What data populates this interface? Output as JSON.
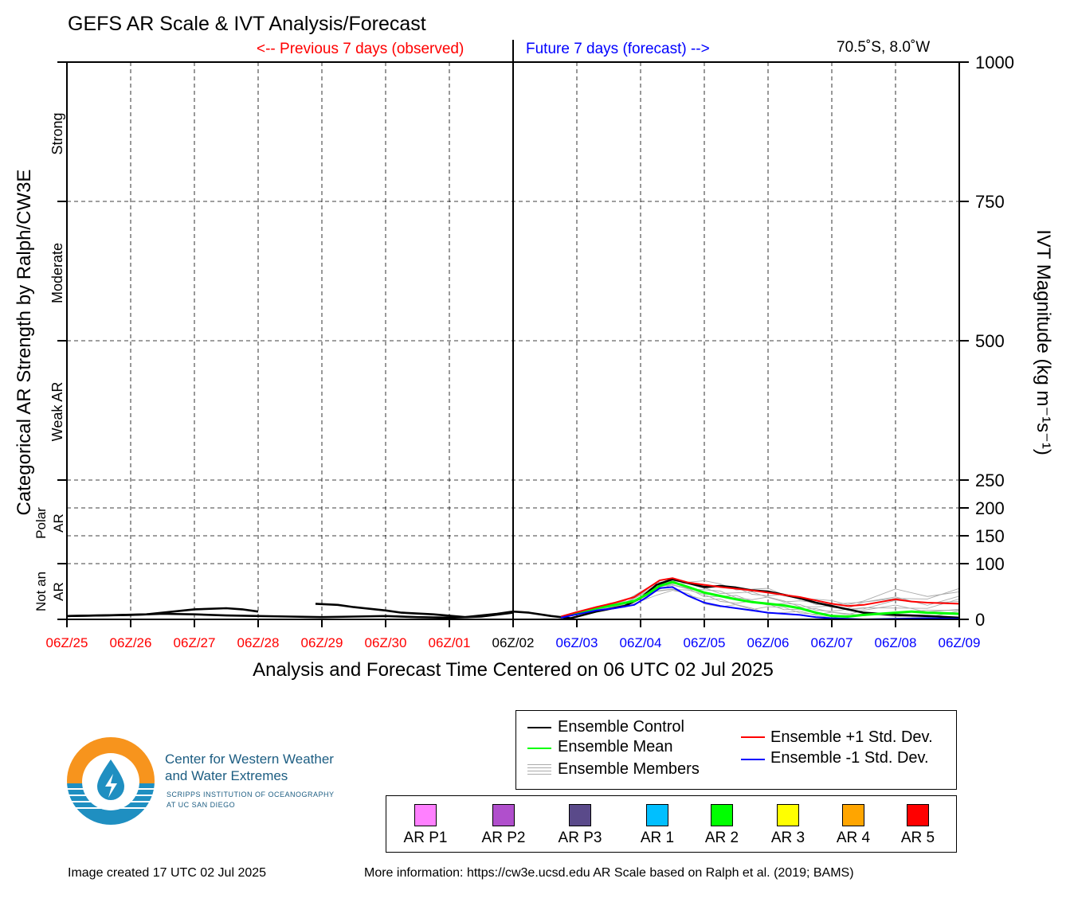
{
  "header": {
    "title": "GEFS AR Scale & IVT Analysis/Forecast",
    "previous_label": "<-- Previous 7 days (observed)",
    "future_label": "Future 7 days (forecast) -->",
    "location": "70.5˚S, 8.0˚W"
  },
  "footer": {
    "created": "Image created 17 UTC 02 Jul 2025",
    "more_info": "More information: https://cw3e.ucsd.edu AR Scale based on Ralph et al. (2019; BAMS)"
  },
  "logo": {
    "line1": "Center for Western Weather",
    "line2": "and Water Extremes",
    "line3": "SCRIPPS INSTITUTION OF OCEANOGRAPHY",
    "line4": "AT UC SAN DIEGO",
    "colors": {
      "orange": "#f7941d",
      "blue": "#1f8fc1",
      "dark": "#1c5d82"
    }
  },
  "legend_lines": [
    {
      "label": "Ensemble Control",
      "color": "#000000"
    },
    {
      "label": "Ensemble Mean",
      "color": "#00ff00"
    },
    {
      "label": "Ensemble Members",
      "color": "#aaaaaa"
    },
    {
      "label": "Ensemble +1 Std. Dev.",
      "color": "#ff0000"
    },
    {
      "label": "Ensemble -1 Std. Dev.",
      "color": "#0000ff"
    }
  ],
  "legend_categories": [
    {
      "label": "AR P1",
      "color": "#ff80ff"
    },
    {
      "label": "AR P2",
      "color": "#b04fcc"
    },
    {
      "label": "AR P3",
      "color": "#5a4a8a"
    },
    {
      "label": "AR 1",
      "color": "#00bfff"
    },
    {
      "label": "AR 2",
      "color": "#00ff00"
    },
    {
      "label": "AR 3",
      "color": "#ffff00"
    },
    {
      "label": "AR 4",
      "color": "#ffa500"
    },
    {
      "label": "AR 5",
      "color": "#ff0000"
    }
  ],
  "chart_data": {
    "type": "line",
    "title": "GEFS AR Scale & IVT Analysis/Forecast",
    "xlabel": "Analysis and Forecast Time Centered on 06 UTC 02 Jul 2025",
    "ylabel_left": "Categorical AR Strength by Ralph/CW3E",
    "ylabel_right": "IVT Magnitude (kg m⁻¹s⁻¹)",
    "x_unit": "days relative to 06Z/02",
    "xlim": [
      -7,
      7
    ],
    "x_ticks": [
      {
        "label": "06Z/25",
        "color": "#ff0000"
      },
      {
        "label": "06Z/26",
        "color": "#ff0000"
      },
      {
        "label": "06Z/27",
        "color": "#ff0000"
      },
      {
        "label": "06Z/28",
        "color": "#ff0000"
      },
      {
        "label": "06Z/29",
        "color": "#ff0000"
      },
      {
        "label": "06Z/30",
        "color": "#ff0000"
      },
      {
        "label": "06Z/01",
        "color": "#ff0000"
      },
      {
        "label": "06Z/02",
        "color": "#000000"
      },
      {
        "label": "06Z/03",
        "color": "#0000ff"
      },
      {
        "label": "06Z/04",
        "color": "#0000ff"
      },
      {
        "label": "06Z/05",
        "color": "#0000ff"
      },
      {
        "label": "06Z/06",
        "color": "#0000ff"
      },
      {
        "label": "06Z/07",
        "color": "#0000ff"
      },
      {
        "label": "06Z/08",
        "color": "#0000ff"
      },
      {
        "label": "06Z/09",
        "color": "#0000ff"
      }
    ],
    "y_right_ticks": [
      {
        "label": "1000",
        "pos": 1000
      },
      {
        "label": "750",
        "pos": 750
      },
      {
        "label": "500",
        "pos": 500
      },
      {
        "label": "250",
        "pos": 250
      },
      {
        "label": "200",
        "pos": 200
      },
      {
        "label": "150",
        "pos": 150
      },
      {
        "label": "100",
        "pos": 100
      },
      {
        "label": "0",
        "pos": 0
      }
    ],
    "grid_lines_ivt": [
      750,
      500,
      250,
      200,
      150,
      100
    ],
    "categories_left": [
      {
        "label": "Strong",
        "from": 750,
        "to": 1000
      },
      {
        "label": "Moderate",
        "from": 500,
        "to": 750
      },
      {
        "label": "Weak AR",
        "from": 250,
        "to": 500
      },
      {
        "label": "Polar AR",
        "from": 100,
        "to": 250
      },
      {
        "label": "Not an AR",
        "from": 0,
        "to": 100
      }
    ],
    "grid": true,
    "series": [
      {
        "name": "Ensemble Control",
        "color": "#000000",
        "width": 2.6,
        "segments": [
          {
            "x": [
              -7.0,
              -6.5,
              -5.75,
              -5.0,
              -4.5,
              -4.25,
              -4.0
            ],
            "y": [
              6,
              7,
              9,
              18,
              20,
              18,
              14
            ]
          },
          {
            "x": [
              -3.1,
              -2.75,
              -2.5,
              -2.0,
              -1.75,
              -1.25,
              -0.75,
              -0.25,
              0.0,
              0.25,
              0.6,
              0.9,
              1.3,
              1.75,
              2.0,
              2.25,
              2.5,
              2.75,
              3.0,
              3.25,
              3.5,
              3.75,
              4.0,
              4.25,
              4.5,
              4.75,
              5.0,
              5.25,
              5.5,
              6.0,
              6.5,
              7.0
            ],
            "y": [
              28,
              26,
              22,
              16,
              12,
              9,
              4,
              10,
              14,
              12,
              6,
              2,
              14,
              24,
              38,
              62,
              72,
              65,
              58,
              60,
              57,
              52,
              50,
              44,
              38,
              30,
              24,
              18,
              12,
              8,
              6,
              3
            ]
          },
          {
            "x": [
              -7.0,
              -6.0,
              -5.5,
              -5.0,
              -4.5,
              -4.0,
              -3.5,
              -3.0,
              -2.5,
              -2.0,
              -1.5,
              -1.0,
              -0.5,
              0.0
            ],
            "y": [
              6,
              8,
              10,
              9,
              7,
              6,
              5,
              4,
              5,
              6,
              4,
              3,
              5,
              12
            ]
          }
        ]
      },
      {
        "name": "Ensemble Mean",
        "color": "#00ff00",
        "width": 3,
        "segments": [
          {
            "x": [
              0.75,
              1.0,
              1.3,
              1.6,
              1.9,
              2.1,
              2.3,
              2.5,
              2.75,
              3.0,
              3.25,
              3.5,
              3.75,
              4.0,
              4.25,
              4.5,
              4.75,
              5.0,
              5.25,
              5.5,
              6.0,
              6.25,
              6.5,
              7.0
            ],
            "y": [
              4,
              12,
              20,
              26,
              33,
              45,
              60,
              67,
              58,
              48,
              42,
              36,
              31,
              28,
              25,
              20,
              12,
              6,
              5,
              8,
              12,
              14,
              12,
              10
            ]
          }
        ]
      },
      {
        "name": "Ensemble +1 Std. Dev.",
        "color": "#ff0000",
        "width": 2,
        "segments": [
          {
            "x": [
              0.75,
              1.0,
              1.3,
              1.6,
              1.9,
              2.1,
              2.3,
              2.5,
              2.75,
              3.0,
              3.25,
              3.5,
              3.75,
              4.0,
              4.25,
              4.5,
              4.75,
              5.0,
              5.25,
              5.5,
              6.0,
              6.25,
              6.5,
              7.0
            ],
            "y": [
              5,
              13,
              22,
              30,
              40,
              55,
              70,
              74,
              66,
              62,
              58,
              55,
              52,
              48,
              44,
              40,
              34,
              28,
              24,
              26,
              36,
              32,
              30,
              28
            ]
          }
        ]
      },
      {
        "name": "Ensemble -1 Std. Dev.",
        "color": "#0000ff",
        "width": 2,
        "segments": [
          {
            "x": [
              0.75,
              1.0,
              1.3,
              1.6,
              1.9,
              2.1,
              2.3,
              2.5,
              2.75,
              3.0,
              3.25,
              3.5,
              3.75,
              4.0,
              4.25,
              4.5,
              4.75,
              5.0,
              5.25,
              5.5,
              6.0,
              6.5,
              7.0
            ],
            "y": [
              3,
              9,
              16,
              20,
              26,
              40,
              56,
              58,
              42,
              30,
              24,
              20,
              16,
              12,
              10,
              8,
              4,
              2,
              1,
              0,
              1,
              2,
              1
            ]
          }
        ]
      }
    ],
    "members_range": {
      "x": [
        0.75,
        1.25,
        1.75,
        2.25,
        2.5,
        2.75,
        3.0,
        3.25,
        3.5,
        3.75,
        4.0,
        4.25,
        4.5,
        4.75,
        5.0,
        5.25,
        5.5,
        6.0,
        6.5,
        7.0
      ],
      "low": [
        3,
        14,
        20,
        42,
        46,
        38,
        24,
        18,
        14,
        10,
        8,
        6,
        4,
        2,
        1,
        0,
        0,
        0,
        0,
        0
      ],
      "high": [
        6,
        20,
        34,
        68,
        76,
        74,
        72,
        70,
        66,
        62,
        58,
        52,
        46,
        40,
        36,
        34,
        42,
        58,
        46,
        66
      ],
      "color": "#aaaaaa"
    }
  }
}
